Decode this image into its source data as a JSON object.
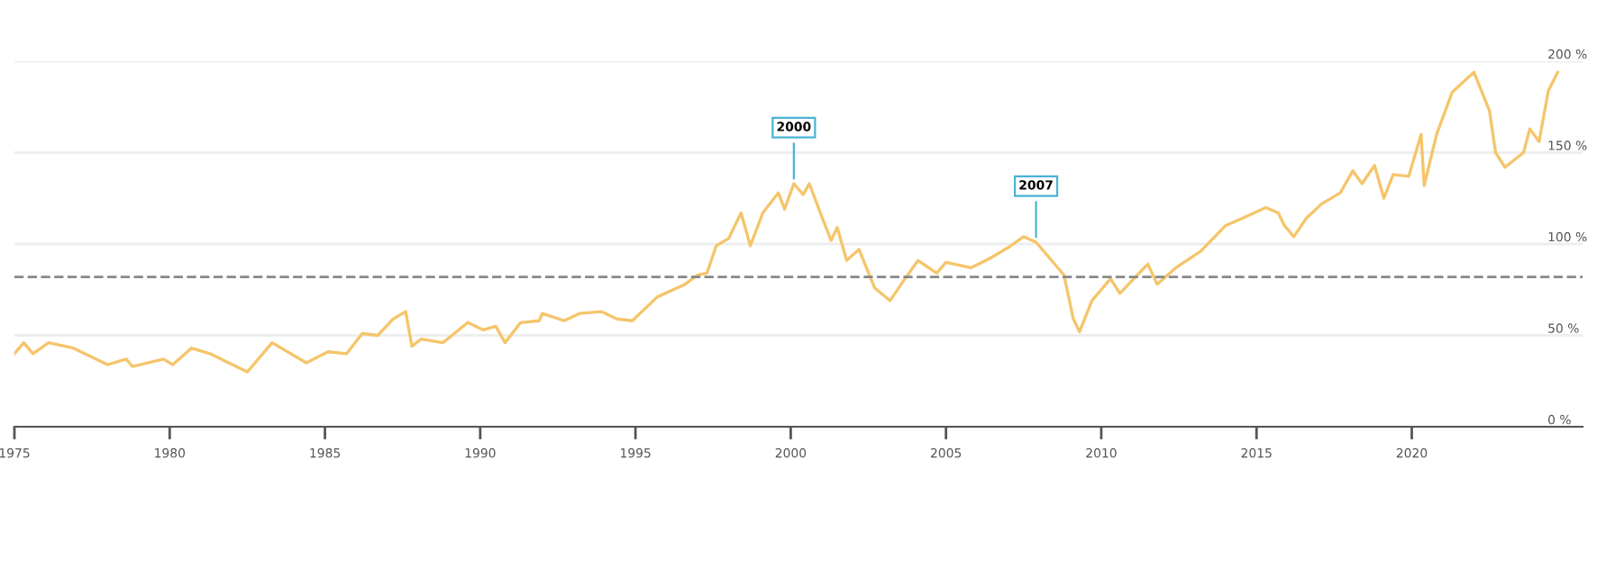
{
  "chart_data": {
    "type": "line",
    "x": [
      1975.0,
      1975.3,
      1975.6,
      1976.1,
      1976.9,
      1978.0,
      1978.6,
      1978.8,
      1979.8,
      1980.1,
      1980.7,
      1981.3,
      1981.9,
      1982.5,
      1983.3,
      1984.4,
      1985.1,
      1985.7,
      1986.2,
      1986.7,
      1987.2,
      1987.6,
      1987.8,
      1988.1,
      1988.8,
      1989.6,
      1990.1,
      1990.5,
      1990.8,
      1991.3,
      1991.9,
      1992.0,
      1992.7,
      1993.2,
      1993.9,
      1994.4,
      1994.9,
      1995.7,
      1996.6,
      1997.0,
      1997.3,
      1997.6,
      1998.0,
      1998.4,
      1998.7,
      1999.1,
      1999.6,
      1999.8,
      2000.1,
      2000.4,
      2000.6,
      2001.0,
      2001.3,
      2001.5,
      2001.8,
      2002.2,
      2002.7,
      2003.2,
      2003.6,
      2004.1,
      2004.7,
      2005.0,
      2005.8,
      2006.4,
      2007.0,
      2007.5,
      2007.9,
      2008.4,
      2008.8,
      2009.1,
      2009.3,
      2009.7,
      2010.3,
      2010.6,
      2011.5,
      2011.8,
      2012.4,
      2013.2,
      2014.0,
      2014.8,
      2015.3,
      2015.7,
      2015.9,
      2016.2,
      2016.6,
      2017.1,
      2017.7,
      2018.1,
      2018.4,
      2018.8,
      2019.1,
      2019.4,
      2019.9,
      2020.3,
      2020.4,
      2020.8,
      2021.3,
      2022.0,
      2022.5,
      2022.7,
      2023.0,
      2023.6,
      2023.8,
      2024.1,
      2024.4,
      2024.7
    ],
    "series": [
      {
        "color": "#f5c56b",
        "values": [
          40,
          46,
          40,
          46,
          43,
          34,
          37,
          33,
          37,
          34,
          43,
          40,
          35,
          30,
          46,
          35,
          41,
          40,
          51,
          50,
          59,
          63,
          44,
          48,
          46,
          57,
          53,
          55,
          46,
          57,
          58,
          62,
          58,
          62,
          63,
          59,
          58,
          71,
          78,
          83,
          84,
          99,
          103,
          117,
          99,
          117,
          128,
          119,
          133,
          127,
          133,
          115,
          102,
          109,
          91,
          97,
          76,
          69,
          79,
          91,
          84,
          90,
          87,
          92,
          98,
          104,
          101,
          91,
          83,
          59,
          52,
          69,
          81,
          73,
          89,
          78,
          87,
          96,
          110,
          116,
          120,
          117,
          110,
          104,
          114,
          122,
          128,
          140,
          133,
          143,
          125,
          138,
          137,
          160,
          132,
          160,
          183,
          194,
          173,
          150,
          142,
          150,
          163,
          156,
          184,
          194
        ]
      }
    ],
    "xlim": [
      1975,
      2025.5
    ],
    "ylim": [
      0,
      200
    ],
    "xticks": [
      1975,
      1980,
      1985,
      1990,
      1995,
      2000,
      2005,
      2010,
      2015,
      2020
    ],
    "yticks": [
      {
        "value": 0,
        "label": "0 %"
      },
      {
        "value": 50,
        "label": "50 %"
      },
      {
        "value": 100,
        "label": "100 %"
      },
      {
        "value": 150,
        "label": "150 %"
      },
      {
        "value": 200,
        "label": "200 %"
      }
    ],
    "grid": "y",
    "legend": false,
    "marker": "none",
    "line_style": "solid",
    "ref_lines": [
      {
        "axis": "y",
        "value": 82,
        "color": "#888888",
        "line_style": "dashed"
      }
    ],
    "annotations": [
      {
        "text": "2000",
        "x": 2000.1,
        "y": 133
      },
      {
        "text": "2007",
        "x": 2007.9,
        "y": 101
      }
    ]
  }
}
